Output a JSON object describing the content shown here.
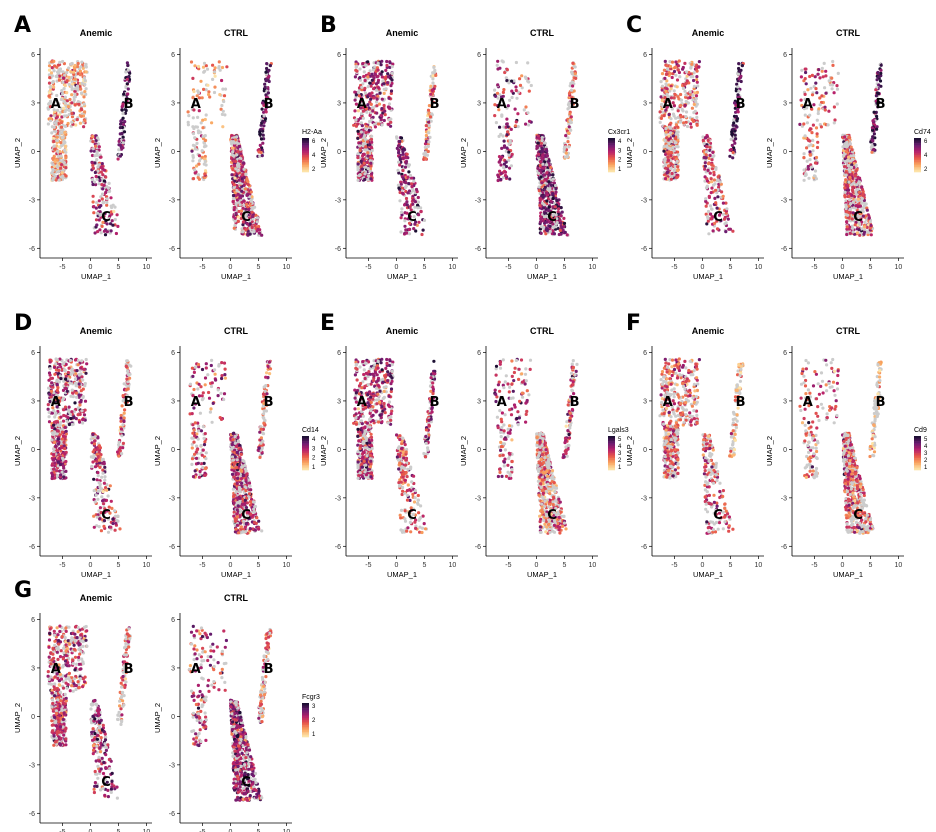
{
  "chart_data": {
    "type": "scatter",
    "xlabel": "UMAP_1",
    "ylabel": "UMAP_2",
    "xlim": [
      -9,
      11
    ],
    "ylim": [
      -6.6,
      6.4
    ],
    "x_ticks": [
      -5,
      0,
      5,
      10
    ],
    "y_ticks": [
      -6,
      -3,
      0,
      3,
      6
    ],
    "grid": false,
    "conditions": [
      "Anemic",
      "CTRL"
    ],
    "clusters": [
      {
        "label": "A",
        "center": [
          -6.0,
          3.0
        ]
      },
      {
        "label": "B",
        "center": [
          7.0,
          3.0
        ]
      },
      {
        "label": "C",
        "center": [
          3.0,
          -4.0
        ]
      }
    ],
    "background_point_color": "#cccccc",
    "colormap": [
      "#fde3a7",
      "#f9a460",
      "#e8584a",
      "#b6206b",
      "#6b1c70",
      "#1c0f33"
    ],
    "panels": [
      {
        "letter": "A",
        "gene": "H2-Aa",
        "scale_ticks": [
          "6",
          "4",
          "2"
        ],
        "expression": {
          "Anemic": {
            "A": 0.3,
            "B": 0.85,
            "C": 0.6
          },
          "CTRL": {
            "A": 0.28,
            "B": 0.8,
            "C": 0.55
          }
        }
      },
      {
        "letter": "B",
        "gene": "Cx3cr1",
        "scale_ticks": [
          "4",
          "3",
          "2",
          "1"
        ],
        "expression": {
          "Anemic": {
            "A": 0.6,
            "B": 0.35,
            "C": 0.7
          },
          "CTRL": {
            "A": 0.6,
            "B": 0.35,
            "C": 0.75
          }
        }
      },
      {
        "letter": "C",
        "gene": "Cd74",
        "scale_ticks": [
          "6",
          "4",
          "2"
        ],
        "expression": {
          "Anemic": {
            "A": 0.45,
            "B": 0.85,
            "C": 0.55
          },
          "CTRL": {
            "A": 0.45,
            "B": 0.85,
            "C": 0.5
          }
        }
      },
      {
        "letter": "D",
        "gene": "Cd14",
        "scale_ticks": [
          "4",
          "3",
          "2",
          "1"
        ],
        "expression": {
          "Anemic": {
            "A": 0.6,
            "B": 0.45,
            "C": 0.55
          },
          "CTRL": {
            "A": 0.55,
            "B": 0.45,
            "C": 0.6
          }
        }
      },
      {
        "letter": "E",
        "gene": "Lgals3",
        "scale_ticks": [
          "5",
          "4",
          "3",
          "2",
          "1"
        ],
        "expression": {
          "Anemic": {
            "A": 0.6,
            "B": 0.6,
            "C": 0.45
          },
          "CTRL": {
            "A": 0.55,
            "B": 0.55,
            "C": 0.4
          }
        }
      },
      {
        "letter": "F",
        "gene": "Cd9",
        "scale_ticks": [
          "5",
          "4",
          "3",
          "2",
          "1"
        ],
        "expression": {
          "Anemic": {
            "A": 0.45,
            "B": 0.15,
            "C": 0.5
          },
          "CTRL": {
            "A": 0.45,
            "B": 0.15,
            "C": 0.45
          }
        }
      },
      {
        "letter": "G",
        "gene": "Fcgr3",
        "scale_ticks": [
          "3",
          "2",
          "1"
        ],
        "expression": {
          "Anemic": {
            "A": 0.55,
            "B": 0.4,
            "C": 0.65
          },
          "CTRL": {
            "A": 0.55,
            "B": 0.4,
            "C": 0.7
          }
        }
      }
    ]
  }
}
